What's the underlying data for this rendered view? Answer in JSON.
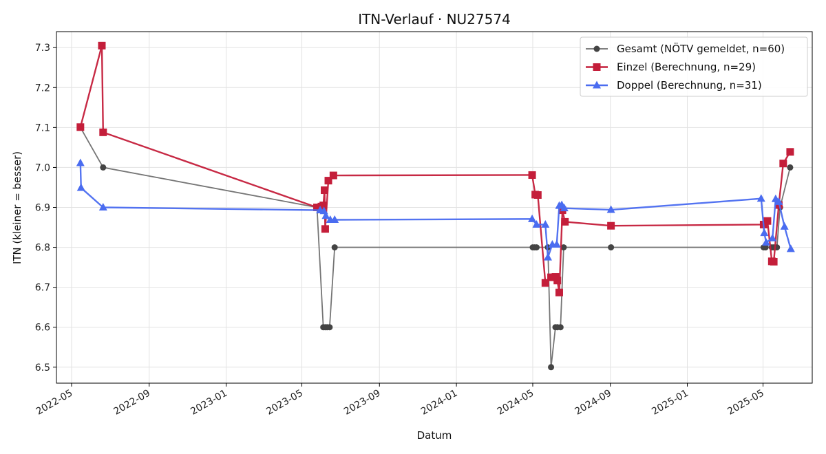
{
  "chart_data": {
    "type": "line",
    "title": "ITN-Verlauf · NU27574",
    "xlabel": "Datum",
    "ylabel": "ITN  (kleiner = besser)",
    "x_ticks": [
      "2022-05",
      "2022-09",
      "2023-01",
      "2023-05",
      "2023-09",
      "2024-01",
      "2024-05",
      "2024-09",
      "2025-01",
      "2025-05"
    ],
    "y_ticks": [
      6.5,
      6.6,
      6.7,
      6.8,
      6.9,
      7.0,
      7.1,
      7.2,
      7.3
    ],
    "xlim": [
      "2022-04-07",
      "2025-07-18"
    ],
    "ylim": [
      6.46,
      7.34
    ],
    "grid": true,
    "legend_position": "top-right",
    "series": [
      {
        "name": "Gesamt (NÖTV gemeldet, n=60)",
        "color": "#6e6e6e",
        "marker_color": "#444444",
        "marker": "circle",
        "points": [
          [
            "2022-05-15",
            7.1
          ],
          [
            "2022-06-20",
            7.0
          ],
          [
            "2023-05-25",
            6.9
          ],
          [
            "2023-06-04",
            6.6
          ],
          [
            "2023-06-07",
            6.6
          ],
          [
            "2023-06-10",
            6.6
          ],
          [
            "2023-06-14",
            6.6
          ],
          [
            "2023-06-22",
            6.8
          ],
          [
            "2024-05-01",
            6.8
          ],
          [
            "2024-05-04",
            6.8
          ],
          [
            "2024-05-07",
            6.8
          ],
          [
            "2024-05-25",
            6.8
          ],
          [
            "2024-05-30",
            6.5
          ],
          [
            "2024-06-06",
            6.6
          ],
          [
            "2024-06-09",
            6.6
          ],
          [
            "2024-06-14",
            6.6
          ],
          [
            "2024-06-19",
            6.8
          ],
          [
            "2024-09-02",
            6.8
          ],
          [
            "2025-05-02",
            6.8
          ],
          [
            "2025-05-05",
            6.8
          ],
          [
            "2025-05-15",
            6.8
          ],
          [
            "2025-05-18",
            6.8
          ],
          [
            "2025-05-23",
            6.8
          ],
          [
            "2025-05-28",
            6.9
          ],
          [
            "2025-06-13",
            7.0
          ]
        ]
      },
      {
        "name": "Einzel (Berechnung, n=29)",
        "color": "#c41e3a",
        "marker": "square",
        "points": [
          [
            "2022-05-15",
            7.101
          ],
          [
            "2022-06-18",
            7.305
          ],
          [
            "2022-06-20",
            7.088
          ],
          [
            "2023-05-25",
            6.9
          ],
          [
            "2023-06-01",
            6.902
          ],
          [
            "2023-06-04",
            6.905
          ],
          [
            "2023-06-06",
            6.943
          ],
          [
            "2023-06-07",
            6.846
          ],
          [
            "2023-06-12",
            6.967
          ],
          [
            "2023-06-20",
            6.98
          ],
          [
            "2024-04-30",
            6.981
          ],
          [
            "2024-05-05",
            6.932
          ],
          [
            "2024-05-09",
            6.931
          ],
          [
            "2024-05-21",
            6.711
          ],
          [
            "2024-05-30",
            6.725
          ],
          [
            "2024-06-06",
            6.726
          ],
          [
            "2024-06-09",
            6.717
          ],
          [
            "2024-06-12",
            6.687
          ],
          [
            "2024-06-17",
            6.893
          ],
          [
            "2024-06-21",
            6.864
          ],
          [
            "2024-09-02",
            6.854
          ],
          [
            "2025-05-02",
            6.857
          ],
          [
            "2025-05-08",
            6.866
          ],
          [
            "2025-05-15",
            6.765
          ],
          [
            "2025-05-18",
            6.764
          ],
          [
            "2025-05-26",
            6.906
          ],
          [
            "2025-06-02",
            7.01
          ],
          [
            "2025-06-13",
            7.039
          ]
        ]
      },
      {
        "name": "Doppel (Berechnung, n=31)",
        "color": "#4a6cf0",
        "marker": "triangle",
        "points": [
          [
            "2022-05-15",
            7.011
          ],
          [
            "2022-05-16",
            6.949
          ],
          [
            "2022-06-20",
            6.9
          ],
          [
            "2023-05-30",
            6.893
          ],
          [
            "2023-06-05",
            6.891
          ],
          [
            "2023-06-08",
            6.879
          ],
          [
            "2023-06-15",
            6.869
          ],
          [
            "2023-06-22",
            6.869
          ],
          [
            "2024-04-30",
            6.871
          ],
          [
            "2024-05-07",
            6.857
          ],
          [
            "2024-05-21",
            6.857
          ],
          [
            "2024-05-25",
            6.775
          ],
          [
            "2024-06-01",
            6.807
          ],
          [
            "2024-06-08",
            6.807
          ],
          [
            "2024-06-12",
            6.904
          ],
          [
            "2024-06-16",
            6.906
          ],
          [
            "2024-06-20",
            6.898
          ],
          [
            "2024-09-02",
            6.894
          ],
          [
            "2025-04-28",
            6.922
          ],
          [
            "2025-05-03",
            6.836
          ],
          [
            "2025-05-06",
            6.812
          ],
          [
            "2025-05-16",
            6.823
          ],
          [
            "2025-05-21",
            6.921
          ],
          [
            "2025-05-26",
            6.914
          ],
          [
            "2025-06-04",
            6.852
          ],
          [
            "2025-06-14",
            6.796
          ]
        ]
      }
    ]
  }
}
